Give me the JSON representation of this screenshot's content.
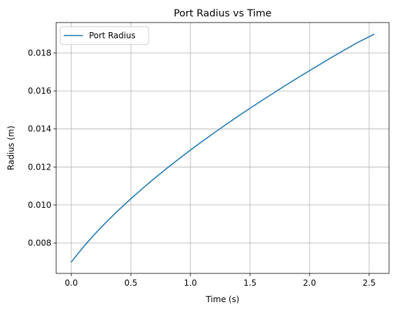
{
  "chart_data": {
    "type": "line",
    "title": "Port Radius vs Time",
    "xlabel": "Time (s)",
    "ylabel": "Radius (m)",
    "xlim": [
      -0.127,
      2.667
    ],
    "ylim": [
      0.0064,
      0.0196
    ],
    "xticks": [
      0.0,
      0.5,
      1.0,
      1.5,
      2.0,
      2.5
    ],
    "xtick_labels": [
      "0.0",
      "0.5",
      "1.0",
      "1.5",
      "2.0",
      "2.5"
    ],
    "yticks": [
      0.008,
      0.01,
      0.012,
      0.014,
      0.016,
      0.018
    ],
    "ytick_labels": [
      "0.008",
      "0.010",
      "0.012",
      "0.014",
      "0.016",
      "0.018"
    ],
    "grid": true,
    "legend_position": "upper left",
    "series": [
      {
        "name": "Port Radius",
        "color": "#1f77b4",
        "x": [
          0.0,
          0.1,
          0.2,
          0.3,
          0.4,
          0.5,
          0.6,
          0.7,
          0.8,
          0.9,
          1.0,
          1.1,
          1.2,
          1.3,
          1.4,
          1.5,
          1.6,
          1.7,
          1.8,
          1.9,
          2.0,
          2.1,
          2.2,
          2.3,
          2.4,
          2.54
        ],
        "y": [
          0.007,
          0.00778,
          0.00849,
          0.00914,
          0.00975,
          0.01033,
          0.01088,
          0.01141,
          0.01192,
          0.01241,
          0.01289,
          0.01335,
          0.0138,
          0.01424,
          0.01467,
          0.01509,
          0.0155,
          0.0159,
          0.0163,
          0.01669,
          0.01707,
          0.01745,
          0.01782,
          0.01818,
          0.01854,
          0.01898
        ]
      }
    ]
  }
}
